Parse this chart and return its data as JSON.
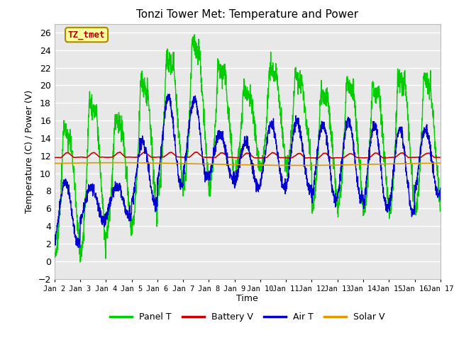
{
  "title": "Tonzi Tower Met: Temperature and Power",
  "xlabel": "Time",
  "ylabel": "Temperature (C) / Power (V)",
  "ylim": [
    -2,
    27
  ],
  "yticks": [
    -2,
    0,
    2,
    4,
    6,
    8,
    10,
    12,
    14,
    16,
    18,
    20,
    22,
    24,
    26
  ],
  "colors": {
    "Panel T": "#00cc00",
    "Battery V": "#cc0000",
    "Air T": "#0000cc",
    "Solar V": "#dd9900"
  },
  "annotation_text": "TZ_tmet",
  "annotation_bg": "#ffff99",
  "annotation_border": "#aa8800",
  "annotation_text_color": "#aa0000",
  "plot_bg": "#e8e8e8",
  "grid_color": "#ffffff",
  "linewidth": 1.0,
  "panel_peaks": [
    15.2,
    18.3,
    16.5,
    20.5,
    23.5,
    25.0,
    22.5,
    19.5,
    22.0,
    21.0,
    19.5,
    20.5,
    20.0,
    21.5,
    21.0
  ],
  "panel_troughs": [
    0.5,
    1.0,
    3.0,
    4.0,
    8.0,
    8.5,
    8.5,
    10.0,
    10.5,
    10.5,
    6.0,
    6.0,
    5.5,
    5.5,
    5.5
  ],
  "air_peaks": [
    9.0,
    8.5,
    8.5,
    13.5,
    18.5,
    18.5,
    14.5,
    13.5,
    15.5,
    16.0,
    15.5,
    16.0,
    15.5,
    15.0,
    15.0
  ],
  "air_troughs": [
    2.0,
    4.5,
    5.0,
    6.5,
    8.5,
    9.5,
    9.5,
    8.5,
    8.5,
    8.0,
    7.0,
    7.0,
    6.0,
    5.5,
    7.5
  ]
}
